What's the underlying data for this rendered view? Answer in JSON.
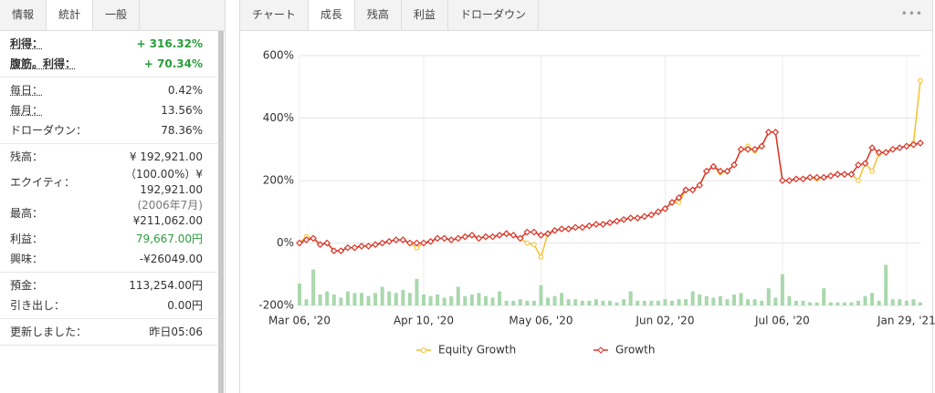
{
  "sidebar": {
    "tabs": [
      "情報",
      "統計",
      "一般"
    ],
    "active_tab": 1,
    "sections": [
      [
        {
          "label": "利得：",
          "value": "+ 316.32%",
          "color": "#2a9d3c"
        },
        {
          "label": "腹筋。利得：",
          "value": "+ 70.34%",
          "color": "#2a9d3c"
        }
      ],
      [
        {
          "label": "毎日：",
          "value": "0.42%"
        },
        {
          "label": "毎月：",
          "value": "13.56%"
        },
        {
          "label": "ドローダウン：",
          "value": "78.36%"
        }
      ],
      [
        {
          "label": "残高：",
          "value": "¥ 192,921.00"
        },
        {
          "label": "エクイティ：",
          "value": "（100.00%）¥ 192,921.00"
        },
        {
          "label": "最高：",
          "note": "(2006年7月)",
          "value": "¥211,062.00"
        },
        {
          "label": "利益：",
          "value": "79,667.00円",
          "color": "#2a9d3c"
        },
        {
          "label": "興味：",
          "value": "-¥26049.00"
        }
      ],
      [
        {
          "label": "預金：",
          "value": "113,254.00円"
        },
        {
          "label": "引き出し：",
          "value": "0.00円"
        }
      ],
      [
        {
          "label": "更新しました：",
          "value": "昨日05:06"
        }
      ]
    ]
  },
  "tabs": [
    "チャート",
    "成長",
    "残高",
    "利益",
    "ドローダウン"
  ],
  "active_tab": 1,
  "menu": "•••",
  "chart_data": {
    "type": "line",
    "categories": [
      "Mar 06, '20",
      null,
      null,
      null,
      null,
      null,
      null,
      null,
      null,
      null,
      null,
      null,
      null,
      null,
      null,
      null,
      null,
      null,
      "Apr 10, '20",
      null,
      null,
      null,
      null,
      null,
      null,
      null,
      null,
      null,
      null,
      null,
      null,
      null,
      null,
      null,
      null,
      "May 06, '20",
      null,
      null,
      null,
      null,
      null,
      null,
      null,
      null,
      null,
      null,
      null,
      null,
      null,
      null,
      null,
      null,
      null,
      "Jun 02, '20",
      null,
      null,
      null,
      null,
      null,
      null,
      null,
      null,
      null,
      null,
      null,
      null,
      null,
      null,
      null,
      null,
      "Jul 06, '20",
      null,
      null,
      null,
      null,
      null,
      null,
      null,
      null,
      null,
      null,
      null,
      null,
      null,
      null,
      null,
      null,
      null,
      "Jan 29, '21",
      null,
      null
    ],
    "series": [
      {
        "name": "Equity Growth",
        "color": "#f2c12e",
        "values": [
          0,
          20,
          15,
          -5,
          0,
          -25,
          -25,
          -15,
          -15,
          -10,
          -10,
          -5,
          0,
          5,
          10,
          10,
          0,
          -15,
          0,
          5,
          15,
          15,
          10,
          15,
          20,
          25,
          15,
          20,
          20,
          25,
          30,
          25,
          15,
          0,
          -5,
          -45,
          30,
          40,
          45,
          45,
          50,
          50,
          55,
          60,
          60,
          65,
          70,
          75,
          80,
          80,
          85,
          90,
          100,
          110,
          130,
          130,
          170,
          170,
          185,
          230,
          245,
          225,
          230,
          250,
          300,
          310,
          295,
          310,
          355,
          355,
          200,
          200,
          205,
          205,
          210,
          205,
          210,
          215,
          220,
          220,
          220,
          200,
          255,
          230,
          285,
          290,
          300,
          305,
          310,
          320,
          520
        ]
      },
      {
        "name": "Growth",
        "color": "#d9342b",
        "values": [
          0,
          10,
          15,
          -5,
          0,
          -25,
          -25,
          -15,
          -15,
          -10,
          -10,
          -5,
          0,
          5,
          10,
          10,
          0,
          0,
          0,
          5,
          15,
          15,
          10,
          15,
          20,
          25,
          15,
          20,
          20,
          25,
          30,
          25,
          15,
          35,
          35,
          25,
          30,
          40,
          45,
          45,
          50,
          50,
          55,
          60,
          60,
          65,
          70,
          75,
          80,
          80,
          85,
          90,
          100,
          110,
          130,
          145,
          170,
          170,
          185,
          230,
          245,
          230,
          230,
          250,
          300,
          300,
          300,
          310,
          355,
          355,
          200,
          200,
          205,
          205,
          210,
          210,
          210,
          215,
          220,
          220,
          220,
          250,
          255,
          305,
          290,
          290,
          300,
          305,
          310,
          315,
          320
        ]
      }
    ],
    "bars": {
      "color": "#a9d8ac",
      "values": [
        70,
        20,
        115,
        35,
        45,
        35,
        25,
        45,
        40,
        40,
        30,
        40,
        60,
        45,
        40,
        50,
        40,
        85,
        35,
        30,
        35,
        25,
        30,
        60,
        30,
        35,
        40,
        30,
        25,
        45,
        15,
        15,
        20,
        15,
        15,
        65,
        25,
        30,
        40,
        20,
        20,
        15,
        15,
        20,
        15,
        15,
        10,
        20,
        45,
        15,
        15,
        15,
        15,
        20,
        15,
        20,
        20,
        45,
        35,
        30,
        25,
        30,
        20,
        35,
        40,
        20,
        20,
        15,
        55,
        25,
        100,
        30,
        15,
        15,
        10,
        10,
        55,
        10,
        10,
        10,
        10,
        15,
        30,
        40,
        15,
        130,
        20,
        20,
        15,
        20,
        10
      ]
    },
    "ylim": [
      -200,
      600
    ],
    "yticks": [
      {
        "value": -200,
        "label": "-200%"
      },
      {
        "value": 0,
        "label": "0%"
      },
      {
        "value": 200,
        "label": "200%"
      },
      {
        "value": 400,
        "label": "400%"
      },
      {
        "value": 600,
        "label": "600%"
      }
    ],
    "grid": true
  }
}
